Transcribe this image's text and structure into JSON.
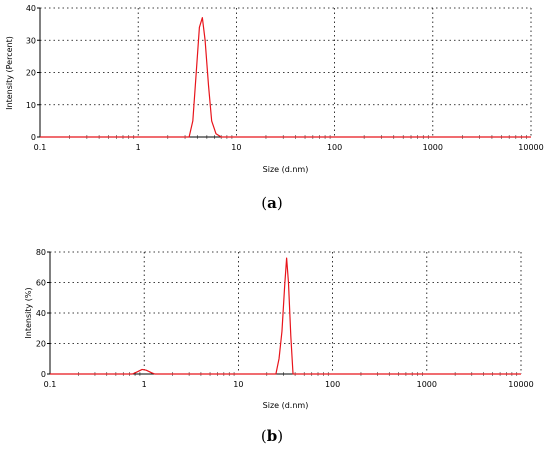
{
  "chart_data": [
    {
      "type": "line",
      "panel_label": {
        "open": "(",
        "letter": "a",
        "close": ")"
      },
      "xlabel": "Size (d.nm)",
      "ylabel": "Intensity (Percent)",
      "xscale": "log",
      "xlim": [
        0.1,
        10000
      ],
      "ylim": [
        0,
        40
      ],
      "x_ticks": [
        "0.1",
        "1",
        "10",
        "100",
        "1000",
        "10000"
      ],
      "y_ticks": [
        "0",
        "10",
        "20",
        "30",
        "40"
      ],
      "grid": "dotted, major ticks",
      "line_color": "#e8141b",
      "series": [
        {
          "x": [
            0.1,
            3.3,
            3.6,
            3.9,
            4.2,
            4.5,
            4.8,
            5.2,
            5.6,
            6.2,
            7.0,
            10000
          ],
          "y": [
            0,
            0,
            5,
            20,
            34,
            37,
            30,
            16,
            5,
            1,
            0,
            0
          ]
        }
      ]
    },
    {
      "type": "line",
      "panel_label": {
        "open": "(",
        "letter": "b",
        "close": ")"
      },
      "xlabel": "Size (d.nm)",
      "ylabel": "Intensity (%)",
      "xscale": "log",
      "xlim": [
        0.1,
        10000
      ],
      "ylim": [
        0,
        80
      ],
      "x_ticks": [
        "0.1",
        "1",
        "10",
        "100",
        "1000",
        "10000"
      ],
      "y_ticks": [
        "0",
        "20",
        "40",
        "60",
        "80"
      ],
      "grid": "dotted, major ticks",
      "line_color": "#e8141b",
      "series": [
        {
          "x": [
            0.1,
            0.75,
            0.85,
            0.95,
            1.05,
            1.2,
            1.3,
            25,
            27,
            29,
            31,
            32.5,
            34,
            36,
            38,
            10000
          ],
          "y": [
            0,
            0,
            1.5,
            3,
            2.5,
            0.8,
            0,
            0,
            10,
            28,
            58,
            76,
            60,
            25,
            0,
            0
          ]
        }
      ]
    }
  ]
}
